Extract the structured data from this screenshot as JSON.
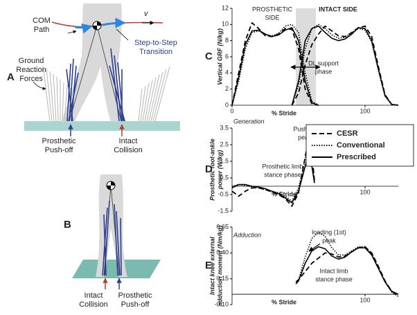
{
  "panels": {
    "A": {
      "label": "A",
      "com_path": [
        "COM",
        "Path"
      ],
      "velocity": "v",
      "transition": [
        "Step-to-Step",
        "Transition"
      ],
      "grf": [
        "Ground",
        "Reaction",
        "Forces"
      ],
      "pushoff": [
        "Prosthetic",
        "Push-off"
      ],
      "collision": [
        "Intact",
        "Collision"
      ]
    },
    "B": {
      "label": "B",
      "collision": [
        "Intact",
        "Collision"
      ],
      "pushoff": [
        "Prosthetic",
        "Push-off"
      ]
    }
  },
  "chart_data": [
    {
      "type": "line",
      "panel": "C",
      "ylabel": [
        "Vertical GRF (N/kg)"
      ],
      "xlabel": "% Stride",
      "xlim": [
        0,
        125
      ],
      "ylim": [
        0,
        12
      ],
      "xticks": [
        0,
        100
      ],
      "yticks": [
        0,
        2,
        4,
        6,
        8,
        10,
        12
      ],
      "shade": [
        48,
        63
      ],
      "annotations": [
        [
          "PROSTHETIC",
          "SIDE"
        ],
        [
          "INTACT SIDE"
        ],
        [
          "DL support",
          "phase"
        ]
      ],
      "x": [
        0,
        5,
        10,
        15,
        20,
        25,
        30,
        35,
        40,
        45,
        50,
        55,
        60,
        65,
        70,
        75,
        80,
        85,
        90,
        95,
        100,
        105,
        110,
        115,
        120,
        125
      ],
      "series": [
        {
          "color": "#000000",
          "dash": "dashed",
          "values": [
            0,
            4,
            8,
            10.2,
            9.5,
            8.6,
            8.5,
            8.8,
            9.5,
            9.4,
            7,
            2,
            0.2,
            0,
            null,
            null,
            null,
            null,
            null,
            null,
            null,
            null,
            null,
            null,
            null,
            null
          ]
        },
        {
          "color": "#000000",
          "dash": "dotted",
          "values": [
            0,
            3,
            7,
            9,
            9.2,
            8.7,
            8.6,
            8.9,
            9.8,
            10,
            9,
            4,
            0.5,
            0,
            null,
            null,
            null,
            null,
            null,
            null,
            null,
            null,
            null,
            null,
            null,
            null
          ]
        },
        {
          "color": "#000000",
          "dash": "solid",
          "values": [
            0,
            3.5,
            7.5,
            9.2,
            9.3,
            8.8,
            8.5,
            8.7,
            9.3,
            9.6,
            8.0,
            3,
            0.3,
            0,
            null,
            null,
            null,
            null,
            null,
            null,
            null,
            null,
            null,
            null,
            null,
            null
          ]
        },
        {
          "color": "#000000",
          "dash": "dashed",
          "values": [
            null,
            null,
            null,
            null,
            null,
            null,
            null,
            null,
            null,
            0,
            1.5,
            5,
            7.5,
            8.8,
            9.8,
            9.2,
            8.6,
            8.5,
            9.0,
            9.6,
            9.8,
            8.5,
            4.8,
            1.3,
            0.1,
            0
          ]
        },
        {
          "color": "#000000",
          "dash": "dotted",
          "values": [
            null,
            null,
            null,
            null,
            null,
            null,
            null,
            null,
            null,
            0,
            2.5,
            7,
            9.5,
            10,
            9.5,
            8.7,
            8.3,
            8.4,
            9.0,
            9.5,
            9.3,
            7.8,
            4.3,
            1.1,
            0.1,
            0
          ]
        },
        {
          "color": "#000000",
          "dash": "solid",
          "values": [
            null,
            null,
            null,
            null,
            null,
            null,
            null,
            null,
            null,
            0,
            3,
            8,
            9.5,
            9.8,
            9.0,
            8.3,
            8.0,
            8.2,
            8.8,
            9.6,
            9.5,
            8,
            4.5,
            1.2,
            0.1,
            0
          ]
        }
      ]
    },
    {
      "type": "line",
      "panel": "D",
      "ylabel": [
        "Prosthetic foot-ankle",
        "power (W/kg)"
      ],
      "xlabel": "% Stride",
      "xlim": [
        0,
        125
      ],
      "ylim": [
        -1.5,
        3.5
      ],
      "xticks": [
        100
      ],
      "yticks": [
        -1.5,
        -0.5,
        0.5,
        1.5,
        2.5,
        3.5
      ],
      "legend": "right",
      "annotations": [
        [
          "Generation"
        ],
        [
          "Push-off",
          "peak"
        ],
        [
          "Prosthetic limb",
          "stance phase"
        ]
      ],
      "x": [
        0,
        5,
        10,
        15,
        20,
        25,
        30,
        35,
        40,
        45,
        50,
        53,
        56,
        58,
        60,
        62
      ],
      "series": [
        {
          "name": "CESR",
          "color": "#000000",
          "dash": "dashed",
          "values": [
            -0.3,
            -0.6,
            -0.3,
            -0.1,
            -0.1,
            -0.2,
            -0.35,
            -0.5,
            -0.75,
            -1.2,
            -0.4,
            0.9,
            2.2,
            2.8,
            2.0,
            0.3
          ]
        },
        {
          "name": "Conventional",
          "color": "#000000",
          "dash": "dotted",
          "values": [
            0,
            0.1,
            0.05,
            -0.05,
            -0.1,
            -0.2,
            -0.3,
            -0.4,
            -0.6,
            -0.9,
            -0.1,
            0.9,
            2.0,
            2.4,
            1.7,
            0.2
          ]
        },
        {
          "name": "Prescribed",
          "color": "#000000",
          "dash": "solid",
          "values": [
            -0.1,
            0.1,
            0.1,
            0.0,
            -0.05,
            -0.15,
            -0.3,
            -0.45,
            -0.7,
            -1.0,
            -0.3,
            0.6,
            1.5,
            1.8,
            1.2,
            0.2
          ]
        }
      ]
    },
    {
      "type": "line",
      "panel": "E",
      "ylabel": [
        "Intact knee external",
        "adduction moment (Nm/kg)"
      ],
      "xlabel": "% Stride",
      "xlim": [
        0,
        125
      ],
      "ylim": [
        -0.1,
        0.65
      ],
      "xticks": [
        100
      ],
      "yticks": [
        {
          "value": -0.1,
          "label": "-0.10"
        },
        0.15,
        {
          "value": 0.4,
          "label": "0.40"
        },
        0.65
      ],
      "annotations": [
        [
          "Adduction"
        ],
        [
          "loading (1st)",
          "peak"
        ],
        [
          "Intact limb",
          "stance phase"
        ]
      ],
      "x": [
        48,
        50,
        55,
        60,
        65,
        70,
        75,
        80,
        85,
        90,
        95,
        100,
        105,
        110,
        115,
        120,
        125
      ],
      "series": [
        {
          "color": "#000000",
          "dash": "dashed",
          "values": [
            0.12,
            0.14,
            0.22,
            0.3,
            0.35,
            0.4,
            0.39,
            0.36,
            0.37,
            0.41,
            0.45,
            0.46,
            0.4,
            0.27,
            0.13,
            0.03,
            -0.01
          ]
        },
        {
          "color": "#000000",
          "dash": "dotted",
          "values": [
            0.1,
            0.14,
            0.36,
            0.54,
            0.6,
            0.56,
            0.45,
            0.38,
            0.38,
            0.42,
            0.46,
            0.46,
            0.39,
            0.26,
            0.12,
            0.02,
            -0.02
          ]
        },
        {
          "color": "#000000",
          "dash": "solid",
          "values": [
            0.1,
            0.13,
            0.3,
            0.42,
            0.46,
            0.44,
            0.37,
            0.34,
            0.36,
            0.41,
            0.45,
            0.45,
            0.38,
            0.25,
            0.12,
            0.03,
            0.0
          ]
        }
      ]
    }
  ]
}
